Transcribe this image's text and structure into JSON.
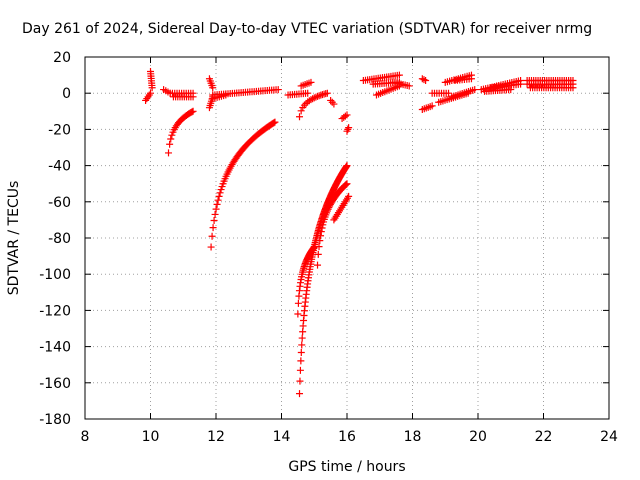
{
  "chart_data": {
    "type": "scatter",
    "title": "Day 261 of 2024, Sidereal Day-to-day VTEC variation (SDTVAR) for receiver nrmg",
    "xlabel": "GPS time / hours",
    "ylabel": "SDTVAR / TECUs",
    "xlim": [
      8,
      24
    ],
    "ylim": [
      -180,
      20
    ],
    "xticks": [
      8,
      10,
      12,
      14,
      16,
      18,
      20,
      22,
      24
    ],
    "yticks": [
      20,
      0,
      -20,
      -40,
      -60,
      -80,
      -100,
      -120,
      -140,
      -160,
      -180
    ],
    "grid": true,
    "marker": "plus",
    "color": "#ff0000",
    "segments": [
      {
        "x0": 9.85,
        "x1": 10.0,
        "y0": -4,
        "y1": 0
      },
      {
        "x0": 10.0,
        "x1": 10.05,
        "y0": 12,
        "y1": 3
      },
      {
        "x0": 10.4,
        "x1": 10.6,
        "y0": 2,
        "y1": 0
      },
      {
        "x0": 10.6,
        "x1": 11.3,
        "y0": 0,
        "y1": 0
      },
      {
        "x0": 10.7,
        "x1": 11.3,
        "y0": -2,
        "y1": -2
      },
      {
        "x0": 10.55,
        "x1": 11.3,
        "y0": -33,
        "y1": -10,
        "curve": "log"
      },
      {
        "x0": 11.8,
        "x1": 11.9,
        "y0": 8,
        "y1": 3
      },
      {
        "x0": 11.8,
        "x1": 11.9,
        "y0": -8,
        "y1": -2
      },
      {
        "x0": 11.9,
        "x1": 13.9,
        "y0": -1,
        "y1": 2
      },
      {
        "x0": 11.9,
        "x1": 12.3,
        "y0": -3,
        "y1": -1
      },
      {
        "x0": 11.85,
        "x1": 13.8,
        "y0": -85,
        "y1": -16,
        "curve": "log"
      },
      {
        "x0": 14.2,
        "x1": 14.8,
        "y0": -1,
        "y1": 0
      },
      {
        "x0": 14.6,
        "x1": 14.9,
        "y0": 4,
        "y1": 6
      },
      {
        "x0": 14.55,
        "x1": 15.4,
        "y0": -13,
        "y1": 0,
        "curve": "log"
      },
      {
        "x0": 15.5,
        "x1": 15.6,
        "y0": -4,
        "y1": -6
      },
      {
        "x0": 15.85,
        "x1": 16.0,
        "y0": -14,
        "y1": -12
      },
      {
        "x0": 16.0,
        "x1": 16.05,
        "y0": -21,
        "y1": -19
      },
      {
        "x0": 14.55,
        "x1": 16.0,
        "y0": -166,
        "y1": -40,
        "curve": "log"
      },
      {
        "x0": 14.5,
        "x1": 15.0,
        "y0": -122,
        "y1": -85,
        "curve": "log"
      },
      {
        "x0": 15.1,
        "x1": 16.0,
        "y0": -95,
        "y1": -50,
        "curve": "log"
      },
      {
        "x0": 15.6,
        "x1": 16.05,
        "y0": -70,
        "y1": -57
      },
      {
        "x0": 16.5,
        "x1": 17.6,
        "y0": 7,
        "y1": 10
      },
      {
        "x0": 16.8,
        "x1": 17.6,
        "y0": 5,
        "y1": 6
      },
      {
        "x0": 17.4,
        "x1": 17.9,
        "y0": 6,
        "y1": 4
      },
      {
        "x0": 16.9,
        "x1": 17.6,
        "y0": -1,
        "y1": 4
      },
      {
        "x0": 18.3,
        "x1": 18.6,
        "y0": -9,
        "y1": -7
      },
      {
        "x0": 18.3,
        "x1": 18.4,
        "y0": 8,
        "y1": 7
      },
      {
        "x0": 18.6,
        "x1": 19.1,
        "y0": 0,
        "y1": 0
      },
      {
        "x0": 19.0,
        "x1": 19.8,
        "y0": 6,
        "y1": 10
      },
      {
        "x0": 19.3,
        "x1": 19.8,
        "y0": 7,
        "y1": 8
      },
      {
        "x0": 18.8,
        "x1": 19.7,
        "y0": -5,
        "y1": 0
      },
      {
        "x0": 19.2,
        "x1": 19.9,
        "y0": -2,
        "y1": 2
      },
      {
        "x0": 20.1,
        "x1": 21.3,
        "y0": 2,
        "y1": 7
      },
      {
        "x0": 20.2,
        "x1": 21.0,
        "y0": 1,
        "y1": 2
      },
      {
        "x0": 20.4,
        "x1": 21.3,
        "y0": 3,
        "y1": 5
      },
      {
        "x0": 21.5,
        "x1": 22.9,
        "y0": 7,
        "y1": 7
      },
      {
        "x0": 21.5,
        "x1": 22.9,
        "y0": 5,
        "y1": 5
      },
      {
        "x0": 21.6,
        "x1": 22.9,
        "y0": 3,
        "y1": 3
      }
    ]
  }
}
